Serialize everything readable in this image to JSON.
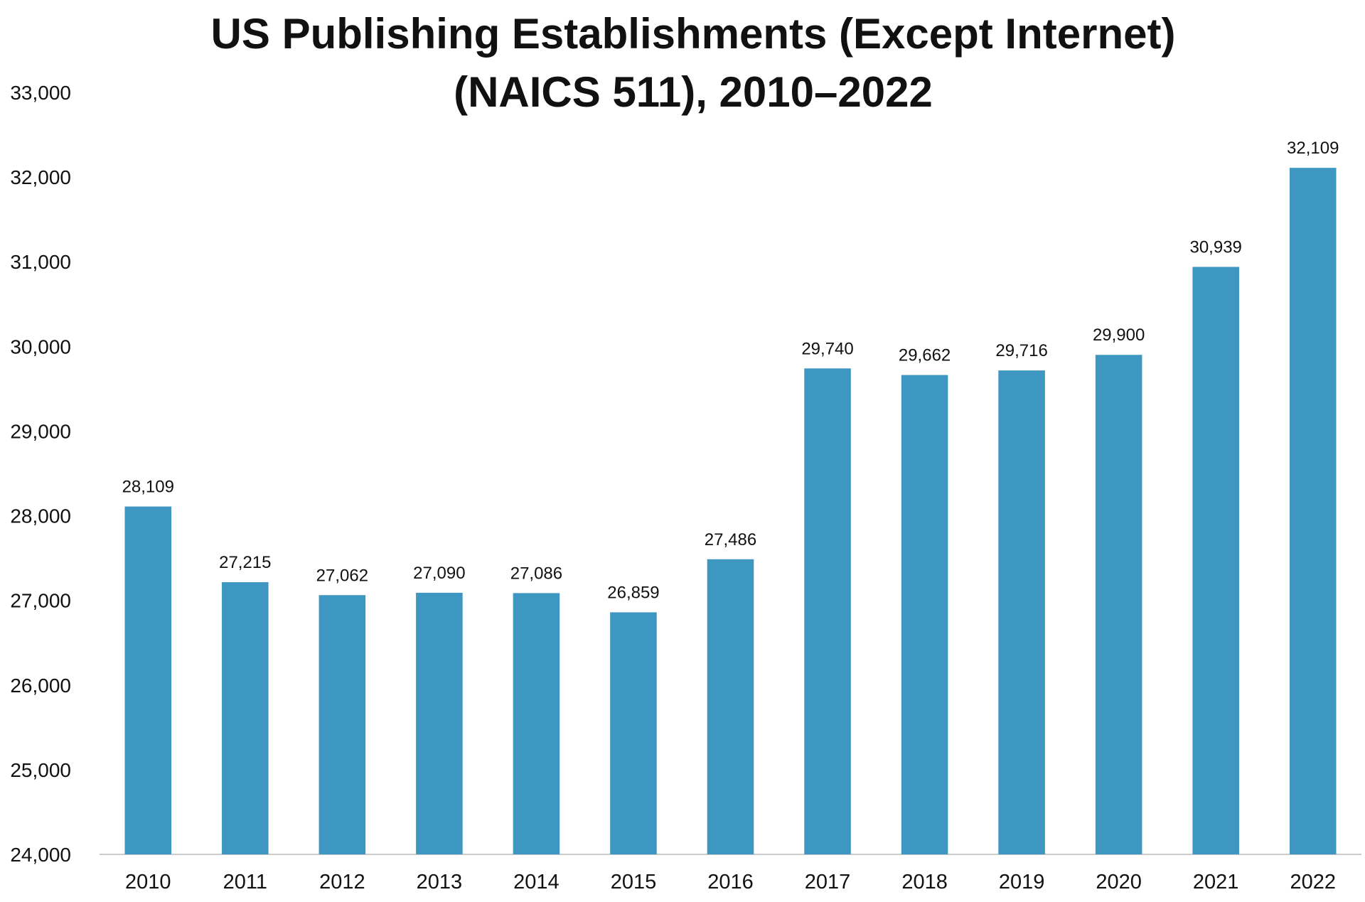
{
  "chart_data": {
    "type": "bar",
    "title": "US Publishing Establishments (Except Internet)",
    "title_line2": "(NAICS 511), 2010–2022",
    "xlabel": "",
    "ylabel": "",
    "ylim": [
      24000,
      33000
    ],
    "y_ticks": [
      24000,
      25000,
      26000,
      27000,
      28000,
      29000,
      30000,
      31000,
      32000,
      33000
    ],
    "y_tick_labels": [
      "24,000",
      "25,000",
      "26,000",
      "27,000",
      "28,000",
      "29,000",
      "30,000",
      "31,000",
      "32,000",
      "33,000"
    ],
    "categories": [
      "2010",
      "2011",
      "2012",
      "2013",
      "2014",
      "2015",
      "2016",
      "2017",
      "2018",
      "2019",
      "2020",
      "2021",
      "2022"
    ],
    "values": [
      28109,
      27215,
      27062,
      27090,
      27086,
      26859,
      27486,
      29740,
      29662,
      29716,
      29900,
      30939,
      32109
    ],
    "value_labels": [
      "28,109",
      "27,215",
      "27,062",
      "27,090",
      "27,086",
      "26,859",
      "27,486",
      "29,740",
      "29,662",
      "29,716",
      "29,900",
      "30,939",
      "32,109"
    ],
    "grid": false,
    "legend": "none",
    "bar_color": "#3d97c1",
    "axis_color": "#cccccc"
  }
}
